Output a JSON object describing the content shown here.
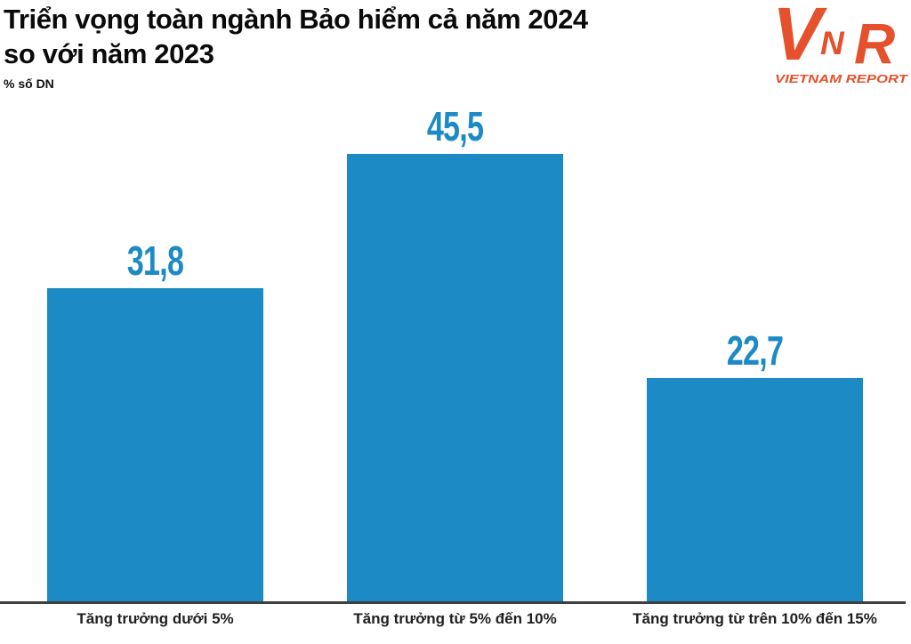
{
  "page": {
    "title_line1": "Triển vọng toàn ngành Bảo hiểm cả năm 2024",
    "title_line2": "so với năm 2023",
    "unit_label": "% số DN"
  },
  "logo": {
    "letter_v": "V",
    "letter_n": "N",
    "letter_r": "R",
    "tagline": "VIETNAM REPORT",
    "color": "#E4512C"
  },
  "colors": {
    "bar": "#1B8AC5",
    "value_label": "#1B8AC5",
    "axis": "#3F3F3F",
    "title": "#0A0A0A",
    "category": "#1F1F1F"
  },
  "chart_data": {
    "type": "bar",
    "title": "Triển vọng toàn ngành Bảo hiểm cả năm 2024 so với năm 2023",
    "unit": "% số DN",
    "categories": [
      "Tăng trưởng dưới 5%",
      "Tăng trưởng từ 5% đến 10%",
      "Tăng trưởng từ trên 10% đến 15%"
    ],
    "values": [
      31.8,
      45.5,
      22.7
    ],
    "value_labels": [
      "31,8",
      "45,5",
      "22,7"
    ],
    "bar_color": "#1B8AC5",
    "grid": false,
    "legend": false,
    "xlabel": "",
    "ylabel": "% số DN"
  }
}
